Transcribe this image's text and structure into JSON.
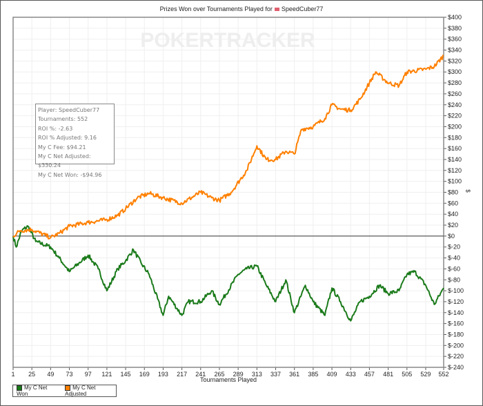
{
  "chart_data": {
    "type": "line",
    "title": "Prizes Won over Tournaments Played for",
    "player": "SpeedCuber77",
    "watermark": "POKERTRACKER",
    "xlabel": "Tournaments Played",
    "ylabel": "$",
    "xlim": [
      1,
      552
    ],
    "ylim": [
      -240,
      400
    ],
    "xticks": [
      1,
      25,
      49,
      73,
      97,
      121,
      145,
      169,
      193,
      217,
      241,
      265,
      289,
      313,
      337,
      361,
      385,
      409,
      433,
      457,
      481,
      505,
      529,
      552
    ],
    "yticks": [
      400,
      380,
      360,
      340,
      320,
      300,
      280,
      260,
      240,
      220,
      200,
      180,
      160,
      140,
      120,
      100,
      80,
      60,
      40,
      20,
      0,
      -20,
      -40,
      -60,
      -80,
      -100,
      -120,
      -140,
      -160,
      -180,
      -200,
      -220,
      -240
    ],
    "grid": true,
    "legend_position": "bottom-left",
    "series": [
      {
        "name": "My C Net Won",
        "color": "#1a7a1a",
        "points": [
          [
            1,
            0
          ],
          [
            5,
            -20
          ],
          [
            12,
            10
          ],
          [
            20,
            18
          ],
          [
            30,
            -10
          ],
          [
            49,
            -20
          ],
          [
            60,
            -40
          ],
          [
            73,
            -65
          ],
          [
            85,
            -50
          ],
          [
            97,
            -35
          ],
          [
            110,
            -60
          ],
          [
            121,
            -100
          ],
          [
            135,
            -60
          ],
          [
            145,
            -45
          ],
          [
            155,
            -25
          ],
          [
            165,
            -50
          ],
          [
            175,
            -70
          ],
          [
            193,
            -145
          ],
          [
            200,
            -110
          ],
          [
            217,
            -145
          ],
          [
            225,
            -120
          ],
          [
            241,
            -120
          ],
          [
            255,
            -100
          ],
          [
            265,
            -125
          ],
          [
            289,
            -70
          ],
          [
            300,
            -60
          ],
          [
            313,
            -55
          ],
          [
            325,
            -90
          ],
          [
            337,
            -120
          ],
          [
            350,
            -80
          ],
          [
            361,
            -140
          ],
          [
            375,
            -90
          ],
          [
            385,
            -120
          ],
          [
            400,
            -145
          ],
          [
            409,
            -95
          ],
          [
            420,
            -120
          ],
          [
            433,
            -155
          ],
          [
            445,
            -120
          ],
          [
            457,
            -110
          ],
          [
            470,
            -90
          ],
          [
            481,
            -105
          ],
          [
            495,
            -100
          ],
          [
            505,
            -70
          ],
          [
            515,
            -65
          ],
          [
            529,
            -90
          ],
          [
            540,
            -125
          ],
          [
            552,
            -95
          ]
        ]
      },
      {
        "name": "My C Net Adjusted",
        "color": "#ff8000",
        "points": [
          [
            1,
            0
          ],
          [
            10,
            10
          ],
          [
            25,
            12
          ],
          [
            49,
            -3
          ],
          [
            60,
            5
          ],
          [
            73,
            18
          ],
          [
            97,
            25
          ],
          [
            121,
            30
          ],
          [
            135,
            38
          ],
          [
            145,
            50
          ],
          [
            160,
            70
          ],
          [
            175,
            78
          ],
          [
            193,
            70
          ],
          [
            217,
            60
          ],
          [
            241,
            80
          ],
          [
            255,
            70
          ],
          [
            265,
            65
          ],
          [
            280,
            80
          ],
          [
            300,
            120
          ],
          [
            313,
            165
          ],
          [
            325,
            140
          ],
          [
            337,
            140
          ],
          [
            350,
            155
          ],
          [
            361,
            150
          ],
          [
            370,
            195
          ],
          [
            385,
            200
          ],
          [
            400,
            215
          ],
          [
            409,
            240
          ],
          [
            420,
            232
          ],
          [
            433,
            230
          ],
          [
            445,
            250
          ],
          [
            457,
            280
          ],
          [
            465,
            300
          ],
          [
            481,
            280
          ],
          [
            495,
            275
          ],
          [
            505,
            300
          ],
          [
            529,
            305
          ],
          [
            540,
            310
          ],
          [
            552,
            330
          ]
        ]
      }
    ]
  },
  "tooltip": {
    "lines": [
      "Player: SpeedCuber77",
      "Tournaments: 552",
      "ROI %: -2.63",
      "ROI % Adjusted: 9.16",
      "My C Fee: $94.21",
      "My C Net Adjusted: $330.24",
      "My C Net Won: -$94.96"
    ]
  }
}
